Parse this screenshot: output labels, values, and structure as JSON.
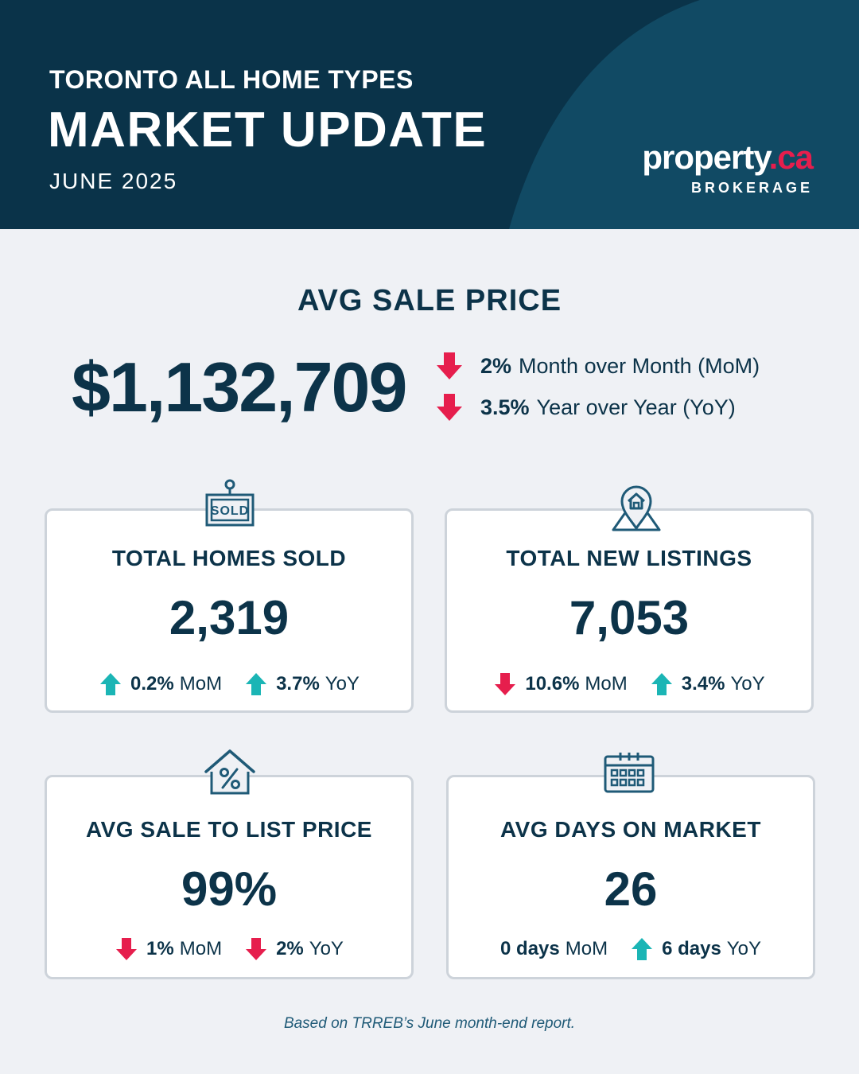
{
  "header": {
    "subtitle": "TORONTO ALL HOME TYPES",
    "title": "MARKET UPDATE",
    "date": "JUNE 2025",
    "logo": {
      "name": "property",
      "accent": ".ca",
      "sub": "BROKERAGE"
    }
  },
  "avg_sale_price": {
    "label": "AVG SALE PRICE",
    "value": "$1,132,709",
    "changes": [
      {
        "direction": "down",
        "pct": "2%",
        "text": "Month over Month (MoM)"
      },
      {
        "direction": "down",
        "pct": "3.5%",
        "text": "Year over Year (YoY)"
      }
    ]
  },
  "cards": [
    {
      "icon": "sold-sign-icon",
      "label": "TOTAL HOMES SOLD",
      "value": "2,319",
      "changes": [
        {
          "direction": "up",
          "value": "0.2%",
          "unit": "MoM"
        },
        {
          "direction": "up",
          "value": "3.7%",
          "unit": "YoY"
        }
      ]
    },
    {
      "icon": "location-pin-house-icon",
      "label": "TOTAL NEW LISTINGS",
      "value": "7,053",
      "changes": [
        {
          "direction": "down",
          "value": "10.6%",
          "unit": "MoM"
        },
        {
          "direction": "up",
          "value": "3.4%",
          "unit": "YoY"
        }
      ]
    },
    {
      "icon": "house-percent-icon",
      "label": "AVG SALE TO LIST PRICE",
      "value": "99%",
      "changes": [
        {
          "direction": "down",
          "value": "1%",
          "unit": "MoM"
        },
        {
          "direction": "down",
          "value": "2%",
          "unit": "YoY"
        }
      ]
    },
    {
      "icon": "calendar-icon",
      "label": "AVG DAYS ON MARKET",
      "value": "26",
      "changes": [
        {
          "direction": "none",
          "value": "0 days",
          "unit": "MoM"
        },
        {
          "direction": "up",
          "value": "6 days",
          "unit": "YoY"
        }
      ]
    }
  ],
  "footnote": "Based on TRREB’s June month-end report.",
  "colors": {
    "navy": "#0b3a50",
    "text": "#0c3349",
    "down": "#e61e4d",
    "up": "#1bb5b5",
    "background": "#eff1f5"
  }
}
